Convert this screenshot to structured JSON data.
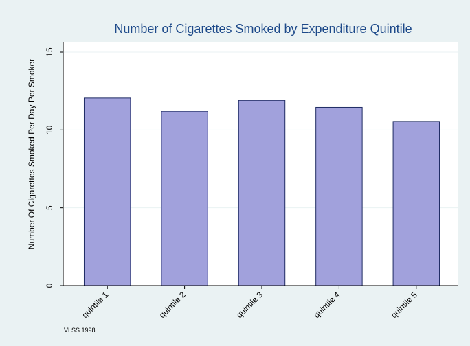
{
  "chart_data": {
    "type": "bar",
    "title": "Number of Cigarettes Smoked by Expenditure Quintile",
    "xlabel": "",
    "ylabel": "Number Of Cigarettes Smoked Per Day Per Smoker",
    "categories": [
      "quintile 1",
      "quintile 2",
      "quintile 3",
      "quintile 4",
      "quintile 5"
    ],
    "values": [
      12.05,
      11.2,
      11.9,
      11.45,
      10.55
    ],
    "ylim": [
      0,
      15
    ],
    "yticks": [
      "0",
      "5",
      "10",
      "15"
    ],
    "ytick_values": [
      0,
      5,
      10,
      15
    ],
    "grid": true,
    "note": "VLSS 1998",
    "colors": {
      "bar_fill": "#a1a1dc",
      "bar_stroke": "#1f2b63",
      "plot_bg": "#ffffff",
      "outer_bg": "#eaf2f3",
      "title": "#1e4a8a",
      "grid": "#eaf2f3"
    }
  }
}
